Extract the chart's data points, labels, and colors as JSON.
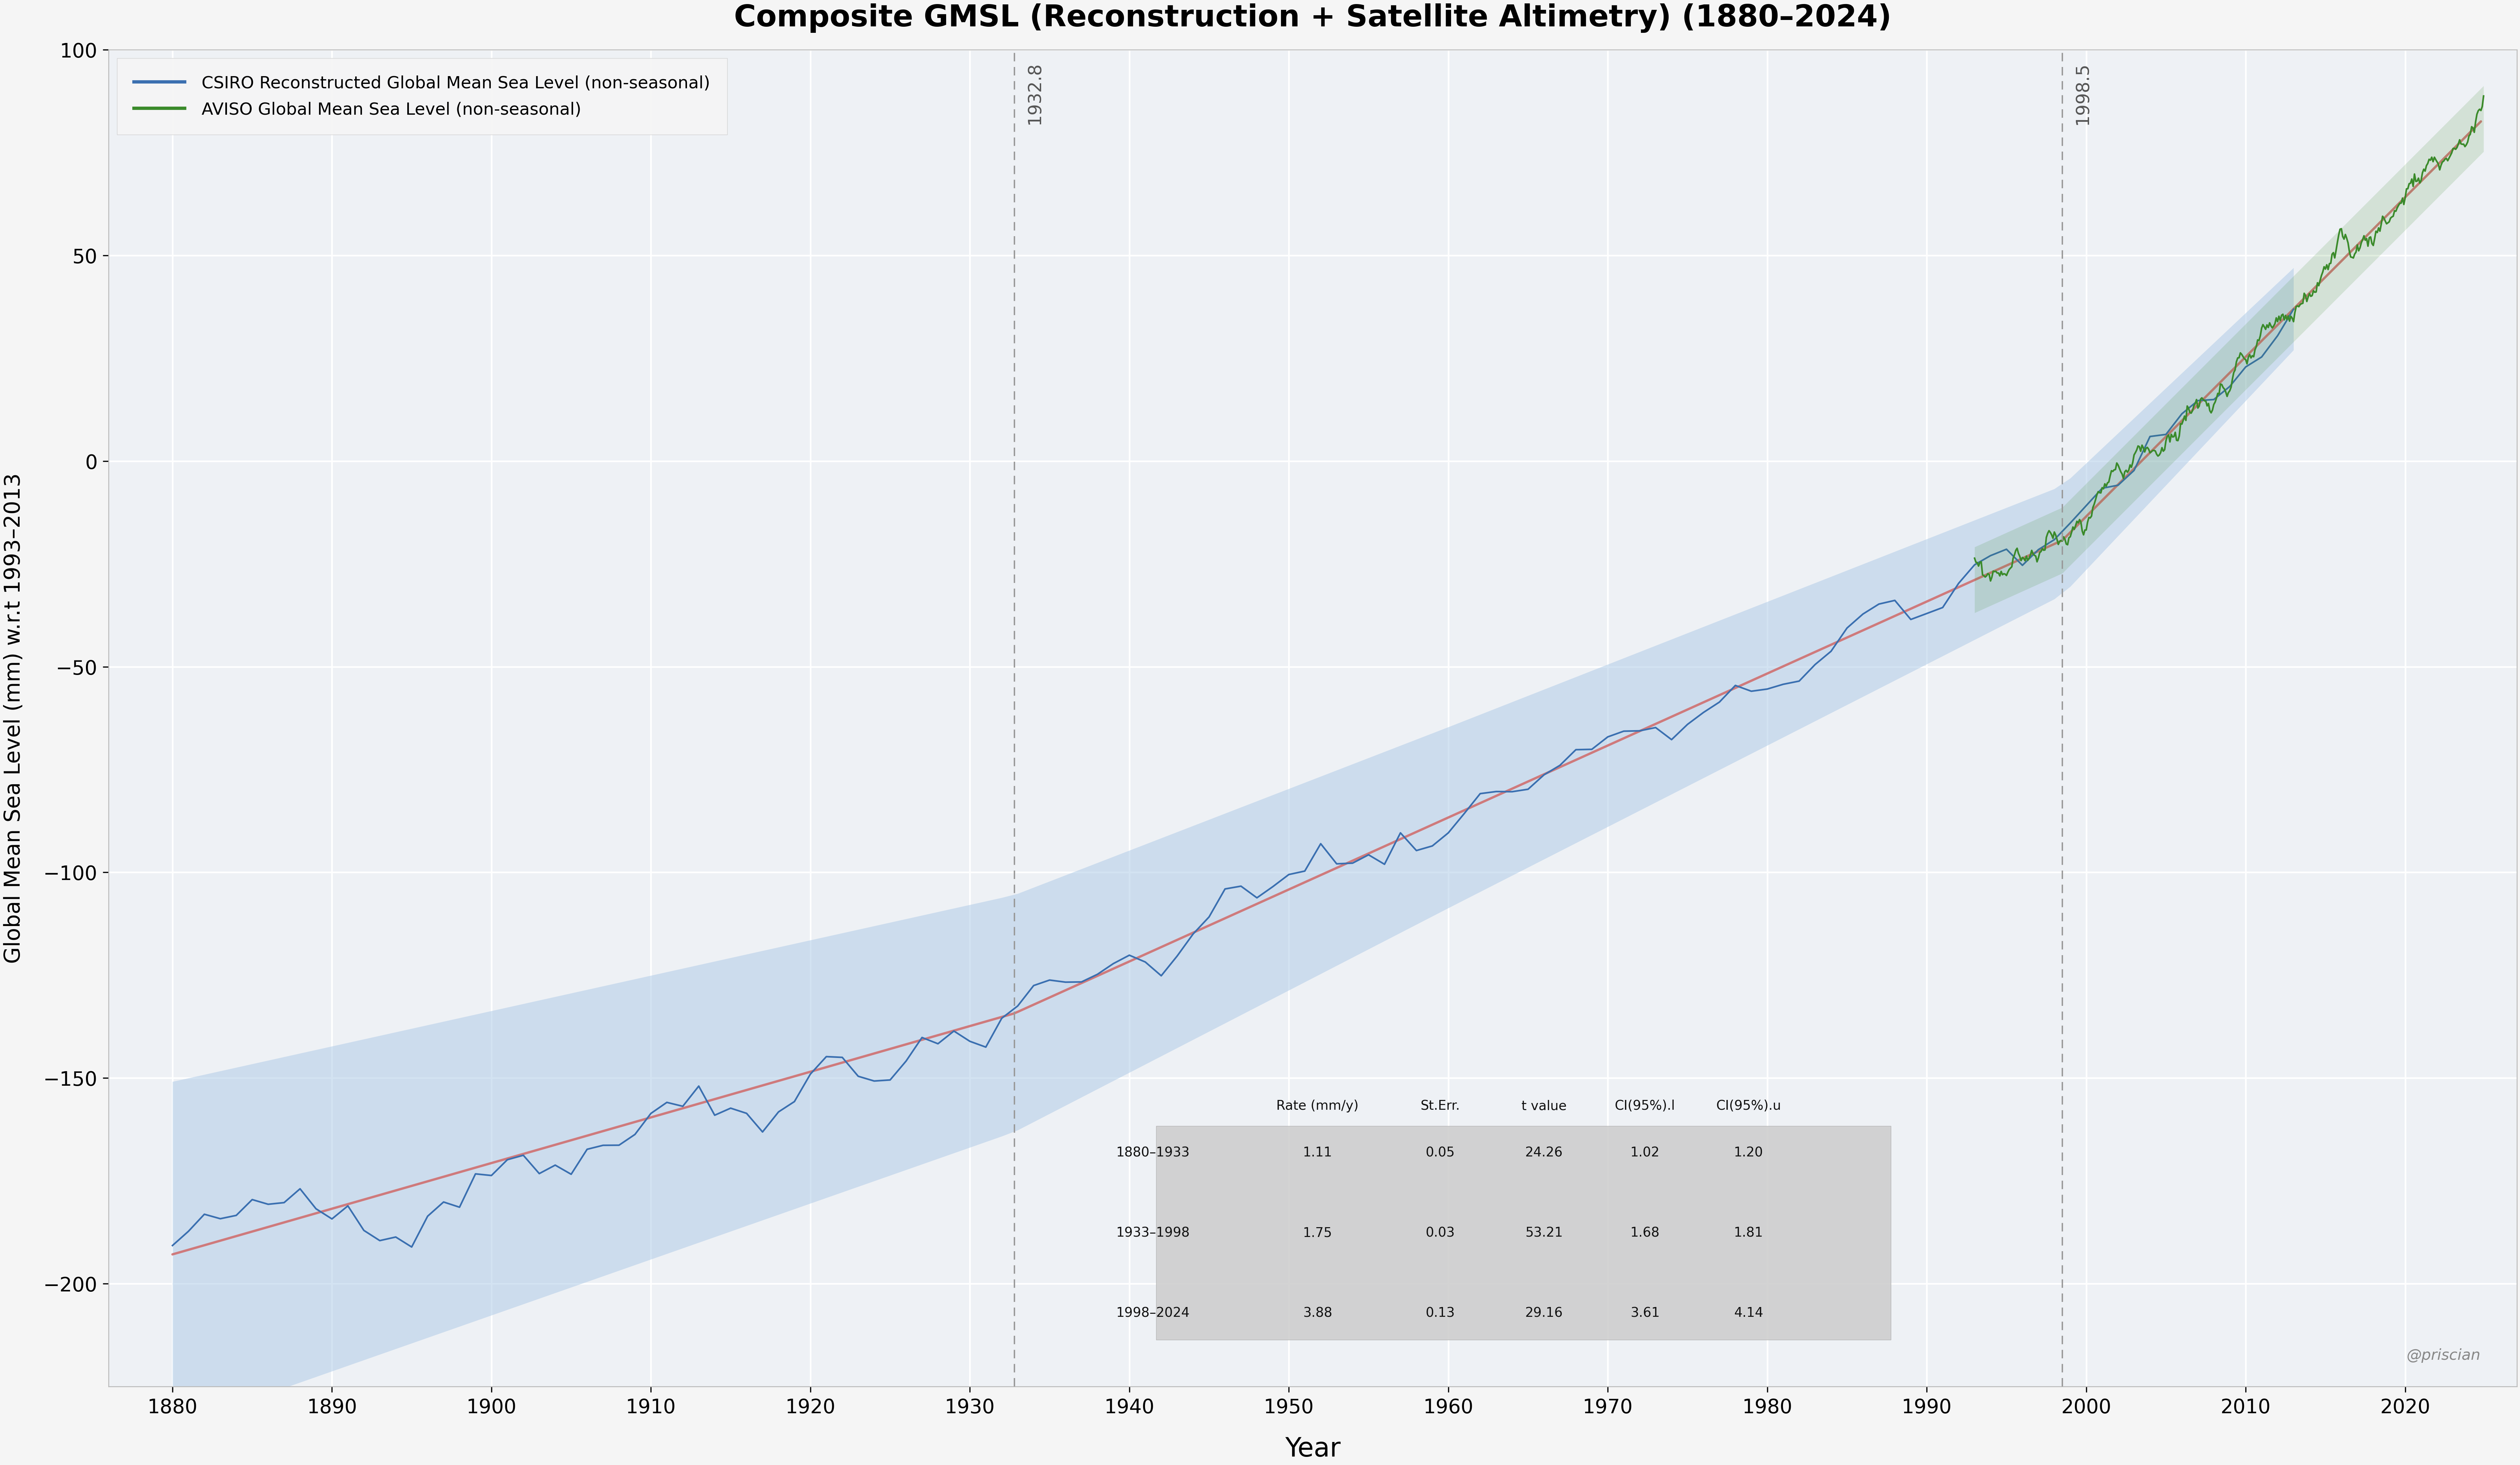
{
  "title": "Composite GMSL (Reconstruction + Satellite Altimetry) (1880–2024)",
  "xlabel": "Year",
  "ylabel": "Global Mean Sea Level (mm) w.r.t 1993–2013",
  "background_color": "#f5f5f5",
  "plot_bg_color": "#eef1f5",
  "grid_color": "#ffffff",
  "csiro_color": "#3a6fb0",
  "csiro_ci_color": "#b0cce8",
  "aviso_color": "#3a8a2a",
  "trend_color": "#d07070",
  "vline_color": "#999999",
  "vline_1": 1932.8,
  "vline_2": 1998.5,
  "stats_table": {
    "header": [
      "",
      "Rate (mm/y)",
      "St.Err.",
      "t value",
      "CI(95%).l",
      "CI(95%).u"
    ],
    "rows": [
      [
        "1880–1933",
        "1.11",
        "0.05",
        "24.26",
        "1.02",
        "1.20"
      ],
      [
        "1933–1998",
        "1.75",
        "0.03",
        "53.21",
        "1.68",
        "1.81"
      ],
      [
        "1998–2024",
        "3.88",
        "0.13",
        "29.16",
        "3.61",
        "4.14"
      ]
    ]
  },
  "legend_entries": [
    "CSIRO Reconstructed Global Mean Sea Level (non-seasonal)",
    "AVISO Global Mean Sea Level (non-seasonal)"
  ],
  "watermark": "@priscian",
  "ylim": [
    -225,
    100
  ],
  "xlim": [
    1876,
    2027
  ],
  "rates": [
    1.11,
    1.75,
    3.88
  ],
  "bp1": 1932.8,
  "bp2": 1998.5,
  "v_1880_raw": -204.0
}
